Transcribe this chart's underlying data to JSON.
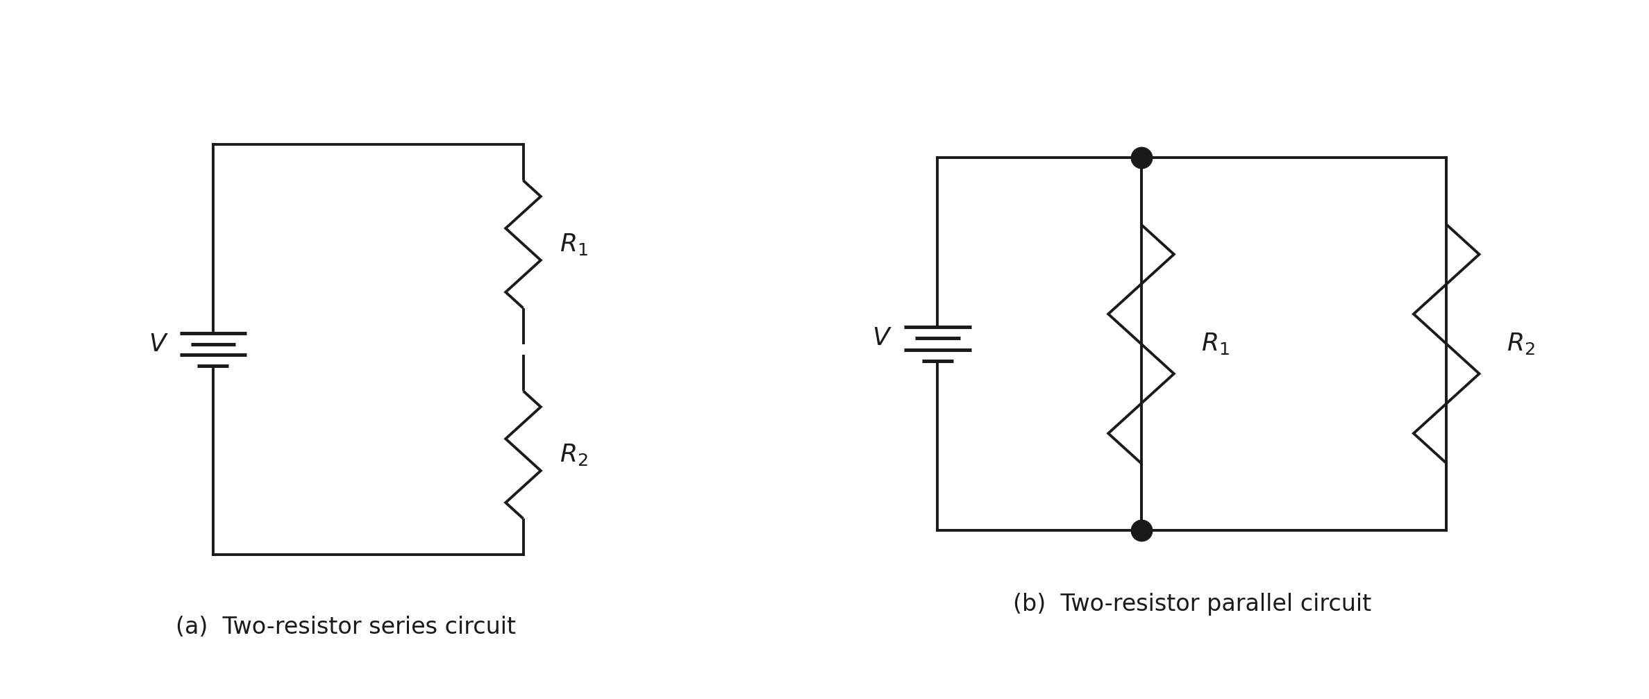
{
  "fig_width": 23.75,
  "fig_height": 10.07,
  "bg_color": "#ffffff",
  "line_color": "#1a1a1a",
  "line_width": 2.8,
  "caption_a": "(a)  Two-resistor series circuit",
  "caption_b": "(b)  Two-resistor parallel circuit",
  "caption_fontsize": 24,
  "label_fontsize": 26,
  "batt_lines": [
    [
      0.3,
      0.0
    ],
    [
      0.2,
      -0.1
    ],
    [
      0.3,
      -0.2
    ],
    [
      0.14,
      -0.3
    ]
  ],
  "resistor_n_teeth": 4,
  "resistor_amp_ratio": 0.55,
  "dot_size": 120
}
